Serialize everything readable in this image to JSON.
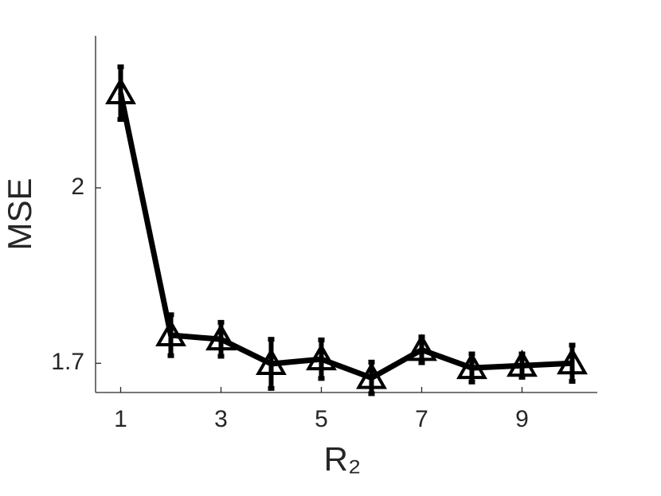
{
  "chart_data": {
    "type": "line",
    "x_label": "R₂",
    "y_label": "MSE",
    "x": [
      1,
      2,
      3,
      4,
      5,
      6,
      7,
      8,
      9,
      10
    ],
    "series": [
      {
        "color": "#000000",
        "marker": "triangle",
        "values": [
          2.162,
          1.748,
          1.741,
          1.699,
          1.707,
          1.675,
          1.723,
          1.692,
          1.696,
          1.7
        ],
        "errors": [
          0.045,
          0.035,
          0.029,
          0.042,
          0.033,
          0.027,
          0.022,
          0.024,
          0.02,
          0.031
        ]
      }
    ],
    "xlim": [
      0.5,
      10.5
    ],
    "xticks": [
      1,
      3,
      5,
      7,
      9
    ],
    "ylim": [
      1.65,
      2.26
    ],
    "yticks": [
      1.7,
      2
    ],
    "grid": false
  }
}
